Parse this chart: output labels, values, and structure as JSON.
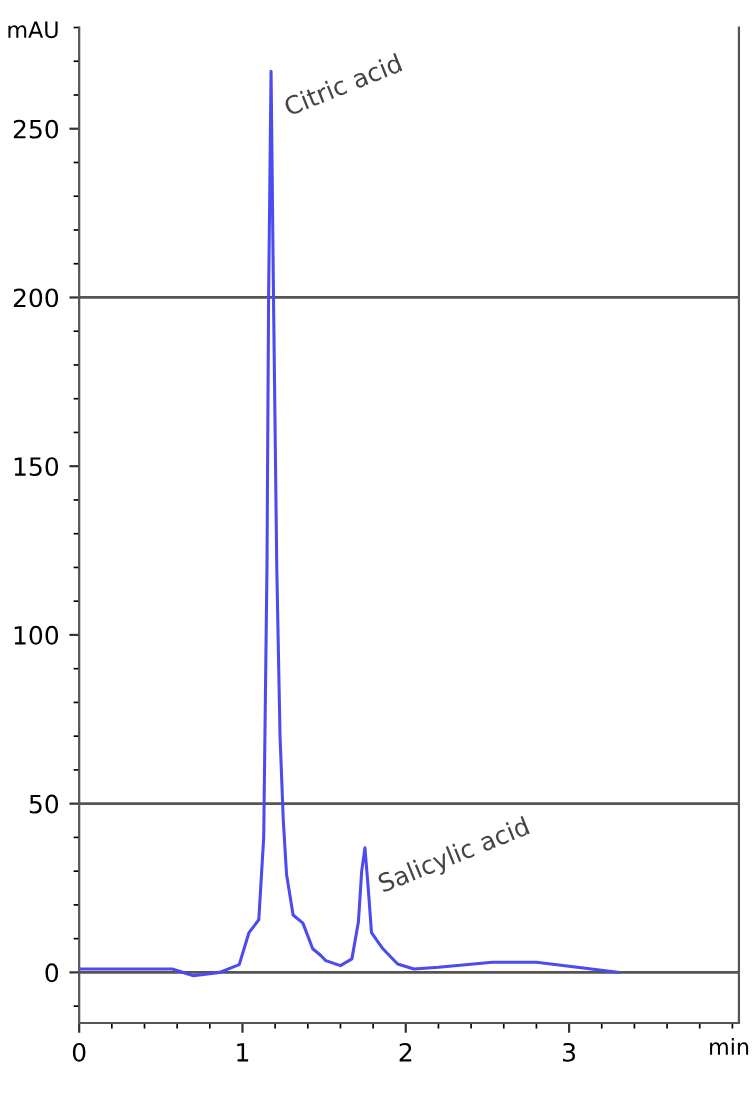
{
  "chart_data": {
    "type": "line",
    "xlabel": "min",
    "ylabel": "mAU",
    "x": [
      0,
      0.3,
      0.57,
      0.7,
      0.86,
      0.98,
      1.04,
      1.1,
      1.13,
      1.15,
      1.16,
      1.175,
      1.19,
      1.21,
      1.23,
      1.25,
      1.27,
      1.31,
      1.37,
      1.43,
      1.48,
      1.51,
      1.6,
      1.67,
      1.71,
      1.73,
      1.75,
      1.77,
      1.79,
      1.86,
      1.95,
      2.05,
      2.2,
      2.53,
      2.8,
      3.05,
      3.3
    ],
    "series": [
      {
        "color": "#4b4bf0",
        "values": [
          1,
          1,
          1,
          -1,
          0,
          2.3,
          11.8,
          15.6,
          40,
          120,
          200,
          267,
          200,
          120,
          70,
          45,
          29,
          17,
          14.6,
          7,
          5,
          3.5,
          2,
          4,
          15,
          30,
          36.9,
          25,
          11.8,
          7,
          2.5,
          1,
          1.5,
          3,
          3,
          1.5,
          0
        ]
      }
    ],
    "xlim": [
      0,
      4.04
    ],
    "xticks": [
      0,
      1,
      2,
      3
    ],
    "ylim": [
      -15,
      280
    ],
    "yticks": [
      0,
      50,
      100,
      150,
      200,
      250
    ],
    "ref_lines": [
      {
        "axis": "y",
        "value": 0,
        "color": "#555555"
      },
      {
        "axis": "y",
        "value": 50,
        "color": "#555555"
      },
      {
        "axis": "y",
        "value": 200,
        "color": "#555555"
      }
    ],
    "annotations": [
      {
        "text": "Citric acid",
        "x": 1.175,
        "y": 267
      },
      {
        "text": "Salicylic acid",
        "x": 1.75,
        "y": 36.9
      }
    ],
    "grid": false,
    "legend": false,
    "line_style": "solid",
    "marker": "none"
  }
}
